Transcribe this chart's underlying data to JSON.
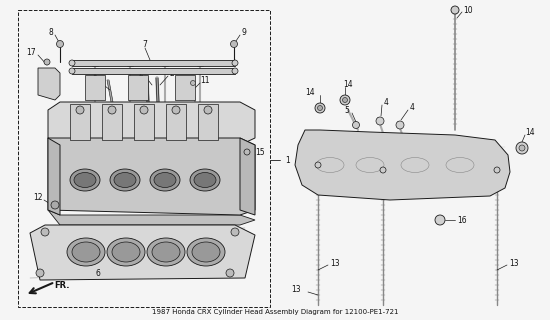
{
  "bg_color": "#f5f5f5",
  "line_color": "#1a1a1a",
  "gray_light": "#cccccc",
  "gray_med": "#aaaaaa",
  "gray_dark": "#888888",
  "white": "#ffffff",
  "fig_width": 5.5,
  "fig_height": 3.2,
  "dpi": 100,
  "font_size": 5.5,
  "label_color": "#111111"
}
